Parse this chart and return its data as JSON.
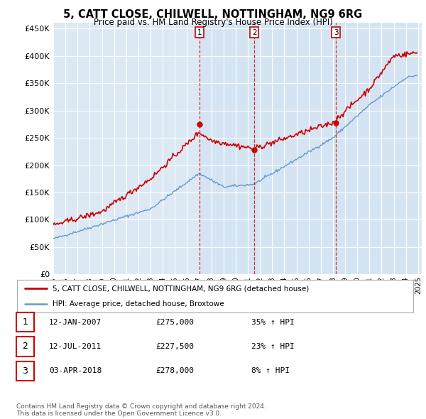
{
  "title": "5, CATT CLOSE, CHILWELL, NOTTINGHAM, NG9 6RG",
  "subtitle": "Price paid vs. HM Land Registry's House Price Index (HPI)",
  "ylim": [
    0,
    460000
  ],
  "yticks": [
    0,
    50000,
    100000,
    150000,
    200000,
    250000,
    300000,
    350000,
    400000,
    450000
  ],
  "ytick_labels": [
    "£0",
    "£50K",
    "£100K",
    "£150K",
    "£200K",
    "£250K",
    "£300K",
    "£350K",
    "£400K",
    "£450K"
  ],
  "background_color": "#ffffff",
  "plot_bg_color": "#dce9f5",
  "grid_color": "#ffffff",
  "red_line_color": "#cc0000",
  "blue_line_color": "#6699cc",
  "sale_years": [
    2007.04,
    2011.54,
    2018.25
  ],
  "sale_prices": [
    275000,
    227500,
    278000
  ],
  "sale_labels": [
    "1",
    "2",
    "3"
  ],
  "vline_color": "#cc3333",
  "shade_color": "#e8f0f8",
  "legend_entries": [
    {
      "label": "5, CATT CLOSE, CHILWELL, NOTTINGHAM, NG9 6RG (detached house)",
      "color": "#cc0000",
      "lw": 2
    },
    {
      "label": "HPI: Average price, detached house, Broxtowe",
      "color": "#6699cc",
      "lw": 1.5
    }
  ],
  "table_rows": [
    {
      "num": "1",
      "date": "12-JAN-2007",
      "price": "£275,000",
      "hpi": "35% ↑ HPI"
    },
    {
      "num": "2",
      "date": "12-JUL-2011",
      "price": "£227,500",
      "hpi": "23% ↑ HPI"
    },
    {
      "num": "3",
      "date": "03-APR-2018",
      "price": "£278,000",
      "hpi": "8% ↑ HPI"
    }
  ],
  "footer": "Contains HM Land Registry data © Crown copyright and database right 2024.\nThis data is licensed under the Open Government Licence v3.0.",
  "start_year": 1995,
  "end_year": 2025
}
